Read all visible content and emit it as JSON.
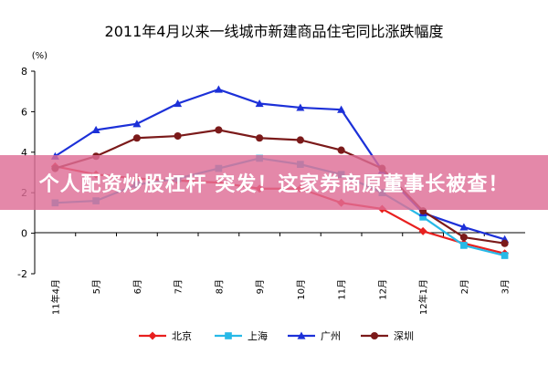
{
  "chart_data": {
    "type": "line",
    "title": "2011年4月以来一线城市新建商品住宅同比涨跌幅度",
    "ylabel": "(%)",
    "xlabel": "",
    "ylim": [
      -2,
      8
    ],
    "yticks": [
      -2,
      0,
      2,
      4,
      6,
      8
    ],
    "categories": [
      "11年4月",
      "5月",
      "6月",
      "7月",
      "8月",
      "9月",
      "10月",
      "11月",
      "12月",
      "12年1月",
      "2月",
      "3月"
    ],
    "grid": false,
    "legend_position": "bottom",
    "series": [
      {
        "name": "北京",
        "color": "#e8201f",
        "marker": "diamond",
        "values": [
          3.3,
          2.9,
          2.7,
          2.6,
          2.5,
          2.2,
          2.2,
          1.5,
          1.2,
          0.1,
          -0.5,
          -1.0
        ]
      },
      {
        "name": "上海",
        "color": "#27b9e7",
        "marker": "square",
        "values": [
          1.5,
          1.6,
          2.4,
          2.7,
          3.2,
          3.7,
          3.4,
          2.9,
          2.0,
          0.8,
          -0.6,
          -1.1
        ]
      },
      {
        "name": "广州",
        "color": "#1c30d8",
        "marker": "triangle",
        "values": [
          3.8,
          5.1,
          5.4,
          6.4,
          7.1,
          6.4,
          6.2,
          6.1,
          3.1,
          1.0,
          0.3,
          -0.3
        ]
      },
      {
        "name": "深圳",
        "color": "#7b1a1a",
        "marker": "circle",
        "values": [
          3.2,
          3.8,
          4.7,
          4.8,
          5.1,
          4.7,
          4.6,
          4.1,
          3.2,
          1.1,
          -0.2,
          -0.5
        ]
      }
    ]
  },
  "banner": {
    "text": "个人配资炒股杠杆 突发！这家券商原董事长被查！"
  }
}
